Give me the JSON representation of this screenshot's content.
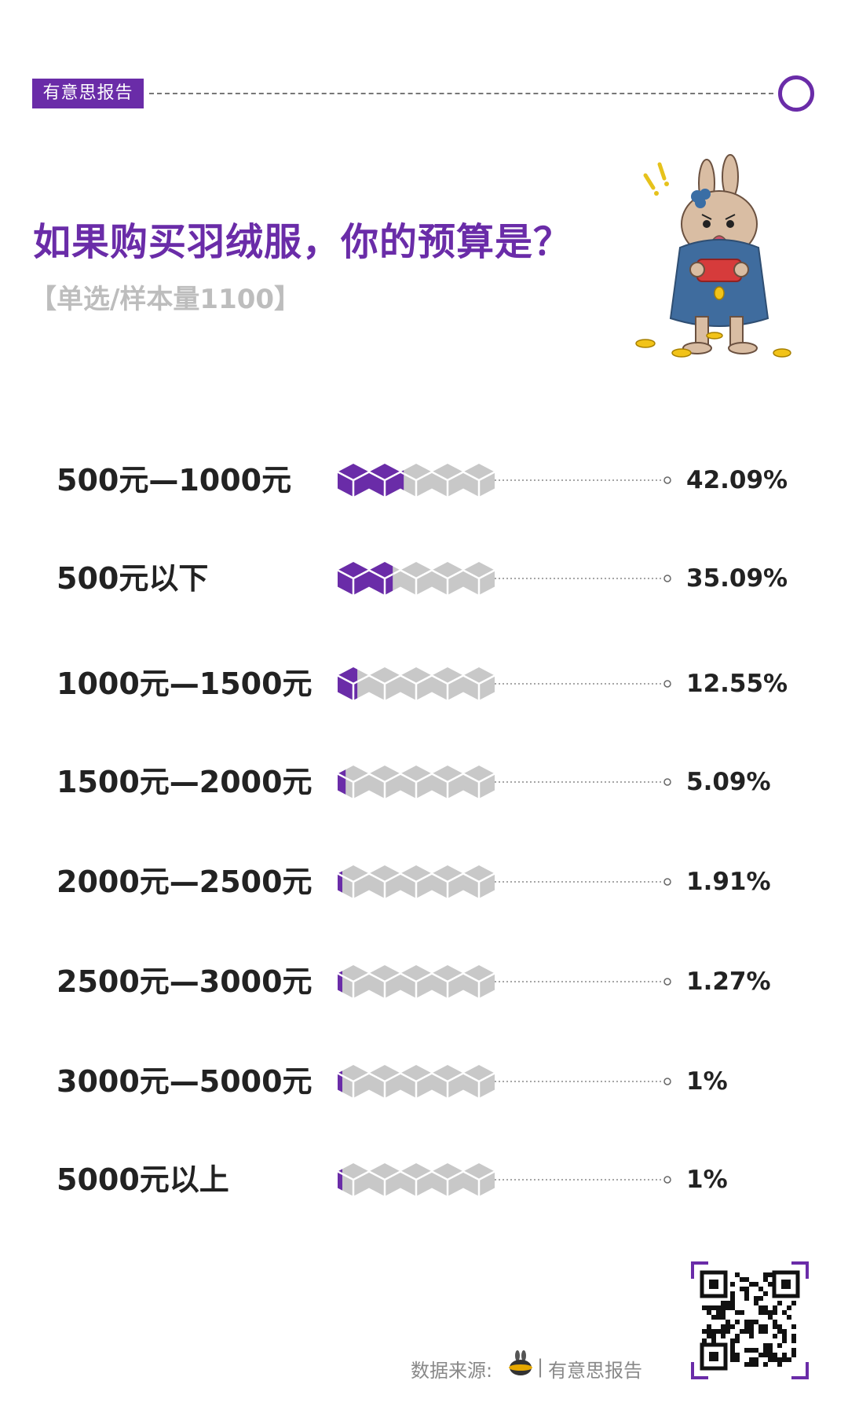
{
  "brand": {
    "tag": "有意思报告"
  },
  "chart_data": {
    "type": "bar",
    "title": "如果购买羽绒服，你的预算是？",
    "subtitle": "【单选/样本量1100】",
    "categories": [
      "500元—1000元",
      "500元以下",
      "1000元—1500元",
      "1500元—2000元",
      "2000元—2500元",
      "2500元—3000元",
      "3000元—5000元",
      "5000元以上"
    ],
    "values": [
      42.09,
      35.09,
      12.55,
      5.09,
      1.91,
      1.27,
      1,
      1
    ],
    "value_labels": [
      "42.09%",
      "35.09%",
      "12.55%",
      "5.09%",
      "1.91%",
      "1.27%",
      "1%",
      "1%"
    ],
    "ylim": [
      0,
      100
    ],
    "colors": {
      "filled": "#6a2ca8",
      "empty": "#c8c8c8"
    }
  },
  "footer": {
    "source_label": "数据来源:",
    "divider": "|",
    "brand": "有意思报告"
  },
  "icons": {
    "mascot": "rabbit-empty-wallet-icon",
    "source_logo": "rabbit-logo-icon",
    "qr": "qr-code-icon"
  }
}
